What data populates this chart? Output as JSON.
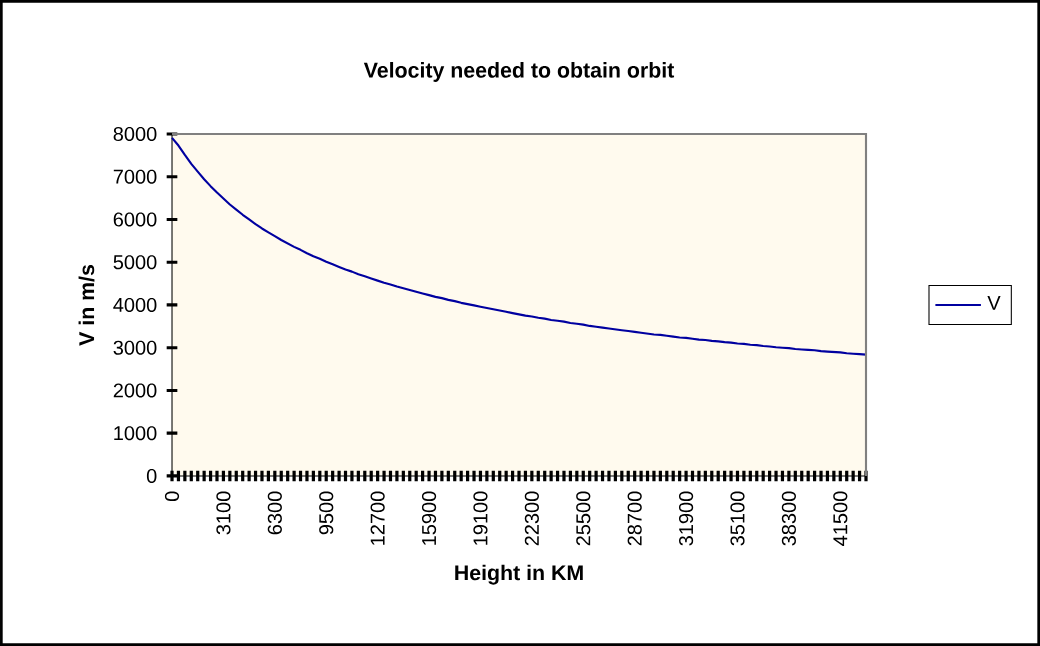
{
  "chart_data": {
    "type": "line",
    "title": "Velocity needed to obtain orbit",
    "xlabel": "Height in KM",
    "ylabel": "V in m/s",
    "categories": [
      "0",
      null,
      null,
      null,
      null,
      null,
      null,
      null,
      "3100",
      null,
      null,
      null,
      null,
      null,
      null,
      null,
      "6300",
      null,
      null,
      null,
      null,
      null,
      null,
      null,
      "9500",
      null,
      null,
      null,
      null,
      null,
      null,
      null,
      "12700",
      null,
      null,
      null,
      null,
      null,
      null,
      null,
      "15900",
      null,
      null,
      null,
      null,
      null,
      null,
      null,
      "19100",
      null,
      null,
      null,
      null,
      null,
      null,
      null,
      "22300",
      null,
      null,
      null,
      null,
      null,
      null,
      null,
      "25500",
      null,
      null,
      null,
      null,
      null,
      null,
      null,
      "28700",
      null,
      null,
      null,
      null,
      null,
      null,
      null,
      "31900",
      null,
      null,
      null,
      null,
      null,
      null,
      null,
      "35100",
      null,
      null,
      null,
      null,
      null,
      null,
      null,
      "38300",
      null,
      null,
      null,
      null,
      null,
      null,
      null,
      "41500",
      null,
      null,
      null,
      null
    ],
    "series": [
      {
        "name": "V",
        "color": "#0000a0",
        "values": [
          7910,
          7730,
          7510,
          7300,
          7120,
          6940,
          6780,
          6630,
          6490,
          6350,
          6230,
          6110,
          6000,
          5890,
          5790,
          5700,
          5610,
          5520,
          5440,
          5360,
          5290,
          5210,
          5140,
          5080,
          5010,
          4950,
          4890,
          4830,
          4780,
          4720,
          4670,
          4620,
          4570,
          4520,
          4480,
          4430,
          4390,
          4350,
          4310,
          4270,
          4230,
          4190,
          4160,
          4120,
          4090,
          4050,
          4020,
          3990,
          3960,
          3930,
          3900,
          3870,
          3840,
          3810,
          3780,
          3750,
          3730,
          3700,
          3680,
          3650,
          3630,
          3610,
          3580,
          3560,
          3540,
          3510,
          3490,
          3470,
          3450,
          3430,
          3410,
          3390,
          3370,
          3350,
          3330,
          3310,
          3300,
          3280,
          3260,
          3240,
          3230,
          3210,
          3190,
          3180,
          3160,
          3150,
          3130,
          3120,
          3100,
          3090,
          3070,
          3060,
          3040,
          3030,
          3010,
          3000,
          2990,
          2970,
          2960,
          2950,
          2940,
          2920,
          2910,
          2900,
          2890,
          2870,
          2860,
          2850,
          2840
        ]
      }
    ],
    "ylim": [
      0,
      8000
    ],
    "yticks": [
      0,
      1000,
      2000,
      3000,
      4000,
      5000,
      6000,
      7000,
      8000
    ],
    "legend": "right",
    "marker": "none",
    "line_style": "solid"
  }
}
